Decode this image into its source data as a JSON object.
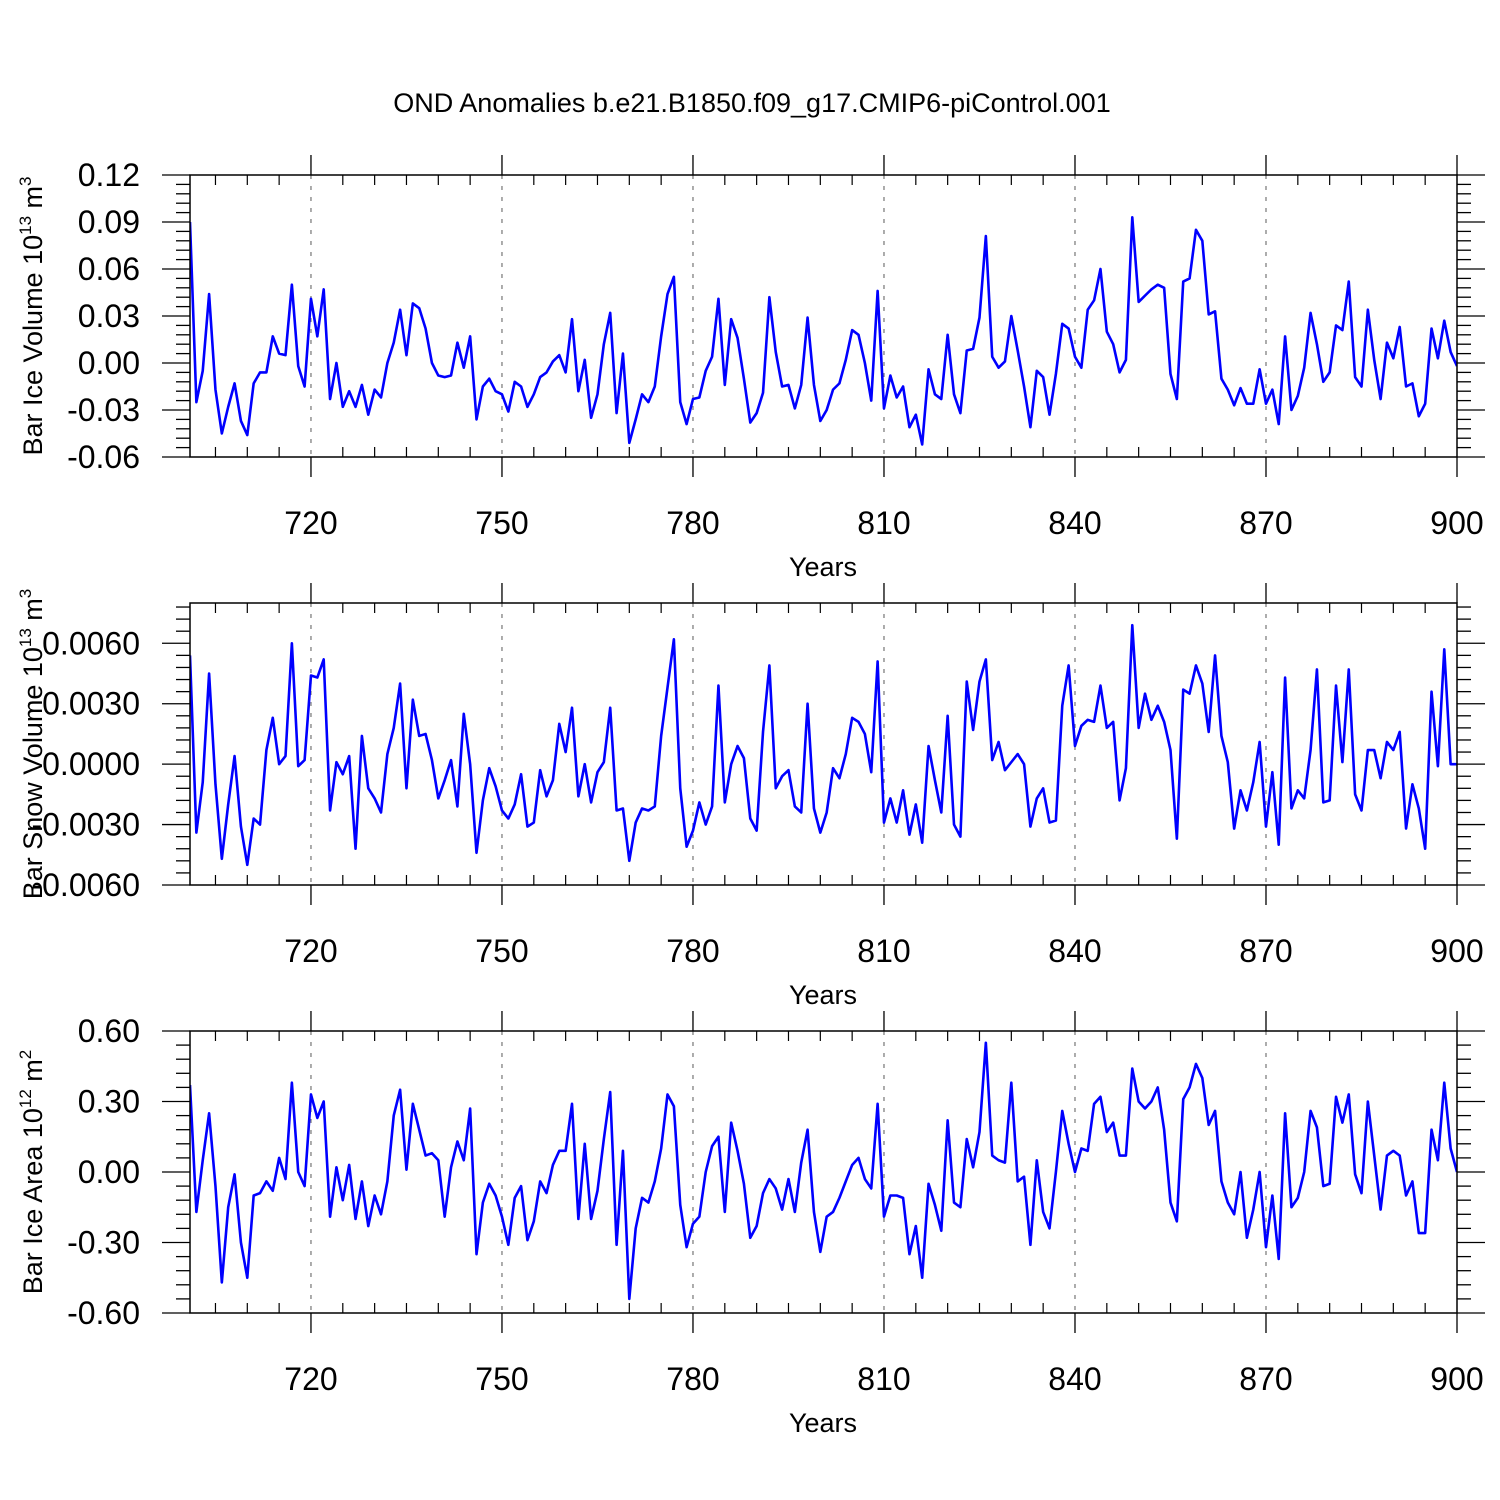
{
  "title": "OND Anomalies b.e21.B1850.f09_g17.CMIP6-piControl.001",
  "colors": {
    "series": "#0000ff",
    "axis": "#000000",
    "grid": "#808080"
  },
  "chart_data": [
    {
      "type": "line",
      "name": "ice-volume",
      "title": "OND Anomalies b.e21.B1850.f09_g17.CMIP6-piControl.001",
      "xlabel": "Years",
      "ylabel_main": "Bar Ice Volume 10",
      "ylabel_sup1": "13",
      "ylabel_mid": " m",
      "ylabel_sup2": "3",
      "xlim": [
        701,
        900
      ],
      "ylim": [
        -0.06,
        0.12
      ],
      "xticks": [
        720,
        750,
        780,
        810,
        840,
        870,
        900
      ],
      "yticks": [
        -0.06,
        -0.03,
        0.0,
        0.03,
        0.06,
        0.09,
        0.12
      ],
      "ytick_labels": [
        "-0.06",
        "-0.03",
        "0.00",
        "0.03",
        "0.06",
        "0.09",
        "0.12"
      ],
      "grid_x": true,
      "x_start": 701,
      "values": [
        0.09,
        -0.025,
        -0.005,
        0.044,
        -0.017,
        -0.045,
        -0.028,
        -0.013,
        -0.037,
        -0.046,
        -0.013,
        -0.006,
        -0.006,
        0.017,
        0.006,
        0.005,
        0.05,
        -0.002,
        -0.015,
        0.041,
        0.017,
        0.047,
        -0.023,
        0.0,
        -0.028,
        -0.018,
        -0.028,
        -0.014,
        -0.033,
        -0.017,
        -0.022,
        0.0,
        0.013,
        0.034,
        0.005,
        0.038,
        0.035,
        0.022,
        0.0,
        -0.008,
        -0.009,
        -0.008,
        0.013,
        -0.003,
        0.017,
        -0.036,
        -0.015,
        -0.01,
        -0.018,
        -0.02,
        -0.031,
        -0.012,
        -0.015,
        -0.028,
        -0.02,
        -0.009,
        -0.006,
        0.001,
        0.005,
        -0.006,
        0.028,
        -0.018,
        0.002,
        -0.035,
        -0.02,
        0.012,
        0.032,
        -0.032,
        0.006,
        -0.051,
        -0.036,
        -0.02,
        -0.025,
        -0.015,
        0.017,
        0.044,
        0.055,
        -0.025,
        -0.039,
        -0.023,
        -0.022,
        -0.005,
        0.004,
        0.041,
        -0.014,
        0.028,
        0.016,
        -0.01,
        -0.038,
        -0.032,
        -0.019,
        0.042,
        0.007,
        -0.015,
        -0.014,
        -0.029,
        -0.014,
        0.029,
        -0.014,
        -0.037,
        -0.03,
        -0.017,
        -0.013,
        0.002,
        0.021,
        0.018,
        0.0,
        -0.024,
        0.046,
        -0.029,
        -0.008,
        -0.022,
        -0.015,
        -0.041,
        -0.033,
        -0.052,
        -0.004,
        -0.02,
        -0.023,
        0.018,
        -0.02,
        -0.032,
        0.008,
        0.009,
        0.029,
        0.081,
        0.004,
        -0.003,
        0.001,
        0.03,
        0.008,
        -0.015,
        -0.041,
        -0.005,
        -0.009,
        -0.033,
        -0.007,
        0.025,
        0.022,
        0.004,
        -0.003,
        0.034,
        0.04,
        0.06,
        0.02,
        0.012,
        -0.006,
        0.002,
        0.093,
        0.039,
        0.043,
        0.047,
        0.05,
        0.048,
        -0.007,
        -0.023,
        0.052,
        0.054,
        0.085,
        0.078,
        0.031,
        0.033,
        -0.01,
        -0.017,
        -0.027,
        -0.016,
        -0.026,
        -0.026,
        -0.004,
        -0.026,
        -0.017,
        -0.039,
        0.017,
        -0.03,
        -0.021,
        -0.003,
        0.032,
        0.012,
        -0.012,
        -0.006,
        0.024,
        0.021,
        0.052,
        -0.009,
        -0.015,
        0.034,
        0.002,
        -0.023,
        0.013,
        0.003,
        0.023,
        -0.015,
        -0.013,
        -0.034,
        -0.026,
        0.022,
        0.003,
        0.027,
        0.007,
        -0.002
      ]
    },
    {
      "type": "line",
      "name": "snow-volume",
      "xlabel": "Years",
      "ylabel_main": "Bar Snow Volume 10",
      "ylabel_sup1": "13",
      "ylabel_mid": " m",
      "ylabel_sup2": "3",
      "xlim": [
        701,
        900
      ],
      "ylim": [
        -0.006,
        0.008
      ],
      "xticks": [
        720,
        750,
        780,
        810,
        840,
        870,
        900
      ],
      "yticks": [
        -0.006,
        -0.003,
        0.0,
        0.003,
        0.006
      ],
      "ytick_labels": [
        "-0.0060",
        "-0.0030",
        "0.0000",
        "0.0030",
        "0.0060"
      ],
      "grid_x": true,
      "x_start": 701,
      "values": [
        0.0054,
        -0.0034,
        -0.0009,
        0.0045,
        -0.001,
        -0.0047,
        -0.002,
        0.0004,
        -0.0031,
        -0.005,
        -0.0027,
        -0.003,
        0.0007,
        0.0023,
        0.0,
        0.0004,
        0.006,
        -0.0001,
        0.0002,
        0.0044,
        0.0043,
        0.0052,
        -0.0023,
        0.0001,
        -0.0005,
        0.0004,
        -0.0042,
        0.0014,
        -0.0012,
        -0.0017,
        -0.0024,
        0.0005,
        0.0018,
        0.004,
        -0.0012,
        0.0032,
        0.0014,
        0.0015,
        0.0002,
        -0.0017,
        -0.0008,
        0.0002,
        -0.0021,
        0.0025,
        0.0,
        -0.0044,
        -0.0018,
        -0.0002,
        -0.0011,
        -0.0023,
        -0.0027,
        -0.002,
        -0.0005,
        -0.0031,
        -0.0029,
        -0.0003,
        -0.0016,
        -0.0008,
        0.002,
        0.0006,
        0.0028,
        -0.0016,
        0.0,
        -0.0019,
        -0.0004,
        0.0001,
        0.0028,
        -0.0023,
        -0.0022,
        -0.0048,
        -0.0029,
        -0.0022,
        -0.0023,
        -0.0021,
        0.0014,
        0.0038,
        0.0062,
        -0.0012,
        -0.0041,
        -0.0033,
        -0.0019,
        -0.003,
        -0.0021,
        0.0039,
        -0.0019,
        0.0,
        0.0009,
        0.0003,
        -0.0027,
        -0.0033,
        0.0016,
        0.0049,
        -0.0012,
        -0.0006,
        -0.0003,
        -0.0021,
        -0.0024,
        0.003,
        -0.0022,
        -0.0034,
        -0.0024,
        -0.0002,
        -0.0007,
        0.0005,
        0.0023,
        0.0021,
        0.0015,
        -0.0004,
        0.0051,
        -0.0029,
        -0.0017,
        -0.0029,
        -0.0013,
        -0.0035,
        -0.002,
        -0.0039,
        0.0009,
        -0.0008,
        -0.0024,
        0.0024,
        -0.003,
        -0.0036,
        0.0041,
        0.0017,
        0.0041,
        0.0052,
        0.0002,
        0.0011,
        -0.0003,
        0.0001,
        0.0005,
        0.0,
        -0.0031,
        -0.0017,
        -0.0012,
        -0.0029,
        -0.0028,
        0.0029,
        0.0049,
        0.0009,
        0.0019,
        0.0022,
        0.0021,
        0.0039,
        0.0018,
        0.0021,
        -0.0018,
        -0.0002,
        0.0069,
        0.0018,
        0.0035,
        0.0022,
        0.0029,
        0.0021,
        0.0007,
        -0.0037,
        0.0037,
        0.0035,
        0.0049,
        0.004,
        0.0016,
        0.0054,
        0.0014,
        0.0001,
        -0.0032,
        -0.0013,
        -0.0023,
        -0.0009,
        0.0011,
        -0.0031,
        -0.0004,
        -0.004,
        0.0043,
        -0.0022,
        -0.0013,
        -0.0017,
        0.0007,
        0.0047,
        -0.0019,
        -0.0018,
        0.0039,
        0.0001,
        0.0047,
        -0.0015,
        -0.0023,
        0.0007,
        0.0007,
        -0.0007,
        0.0011,
        0.0007,
        0.0016,
        -0.0032,
        -0.001,
        -0.0022,
        -0.0042,
        0.0036,
        -0.0001,
        0.0057,
        0.0,
        0.0
      ]
    },
    {
      "type": "line",
      "name": "ice-area",
      "xlabel": "Years",
      "ylabel_main": "Bar Ice Area 10",
      "ylabel_sup1": "12",
      "ylabel_mid": " m",
      "ylabel_sup2": "2",
      "xlim": [
        701,
        900
      ],
      "ylim": [
        -0.6,
        0.6
      ],
      "xticks": [
        720,
        750,
        780,
        810,
        840,
        870,
        900
      ],
      "yticks": [
        -0.6,
        -0.3,
        0.0,
        0.3,
        0.6
      ],
      "ytick_labels": [
        "-0.60",
        "-0.30",
        "0.00",
        "0.30",
        "0.60"
      ],
      "grid_x": true,
      "x_start": 701,
      "values": [
        0.37,
        -0.17,
        0.05,
        0.25,
        -0.06,
        -0.47,
        -0.15,
        -0.01,
        -0.3,
        -0.45,
        -0.1,
        -0.09,
        -0.04,
        -0.08,
        0.06,
        -0.03,
        0.38,
        0.0,
        -0.06,
        0.33,
        0.23,
        0.3,
        -0.19,
        0.02,
        -0.12,
        0.03,
        -0.2,
        -0.04,
        -0.23,
        -0.1,
        -0.18,
        -0.04,
        0.24,
        0.35,
        0.01,
        0.29,
        0.18,
        0.07,
        0.08,
        0.05,
        -0.19,
        0.02,
        0.13,
        0.05,
        0.27,
        -0.35,
        -0.13,
        -0.05,
        -0.1,
        -0.19,
        -0.31,
        -0.11,
        -0.06,
        -0.29,
        -0.21,
        -0.04,
        -0.09,
        0.03,
        0.09,
        0.09,
        0.29,
        -0.2,
        0.12,
        -0.2,
        -0.08,
        0.14,
        0.34,
        -0.31,
        0.09,
        -0.54,
        -0.24,
        -0.11,
        -0.13,
        -0.04,
        0.1,
        0.33,
        0.28,
        -0.14,
        -0.32,
        -0.22,
        -0.19,
        0.0,
        0.11,
        0.15,
        -0.17,
        0.21,
        0.09,
        -0.05,
        -0.28,
        -0.23,
        -0.09,
        -0.03,
        -0.07,
        -0.16,
        -0.03,
        -0.17,
        0.04,
        0.18,
        -0.17,
        -0.34,
        -0.19,
        -0.17,
        -0.11,
        -0.04,
        0.03,
        0.06,
        -0.03,
        -0.07,
        0.29,
        -0.19,
        -0.1,
        -0.1,
        -0.11,
        -0.35,
        -0.23,
        -0.45,
        -0.05,
        -0.14,
        -0.25,
        0.22,
        -0.13,
        -0.15,
        0.14,
        0.02,
        0.17,
        0.55,
        0.07,
        0.05,
        0.04,
        0.38,
        -0.04,
        -0.02,
        -0.31,
        0.05,
        -0.17,
        -0.24,
        0.0,
        0.26,
        0.12,
        0.0,
        0.1,
        0.09,
        0.29,
        0.32,
        0.17,
        0.21,
        0.07,
        0.07,
        0.44,
        0.3,
        0.27,
        0.3,
        0.36,
        0.18,
        -0.13,
        -0.21,
        0.31,
        0.36,
        0.46,
        0.4,
        0.2,
        0.26,
        -0.04,
        -0.13,
        -0.18,
        0.0,
        -0.28,
        -0.16,
        0.0,
        -0.32,
        -0.1,
        -0.37,
        0.25,
        -0.15,
        -0.11,
        0.0,
        0.26,
        0.19,
        -0.06,
        -0.05,
        0.32,
        0.21,
        0.33,
        -0.01,
        -0.09,
        0.3,
        0.07,
        -0.16,
        0.07,
        0.09,
        0.07,
        -0.1,
        -0.04,
        -0.26,
        -0.26,
        0.18,
        0.05,
        0.38,
        0.1,
        0.0
      ]
    }
  ]
}
